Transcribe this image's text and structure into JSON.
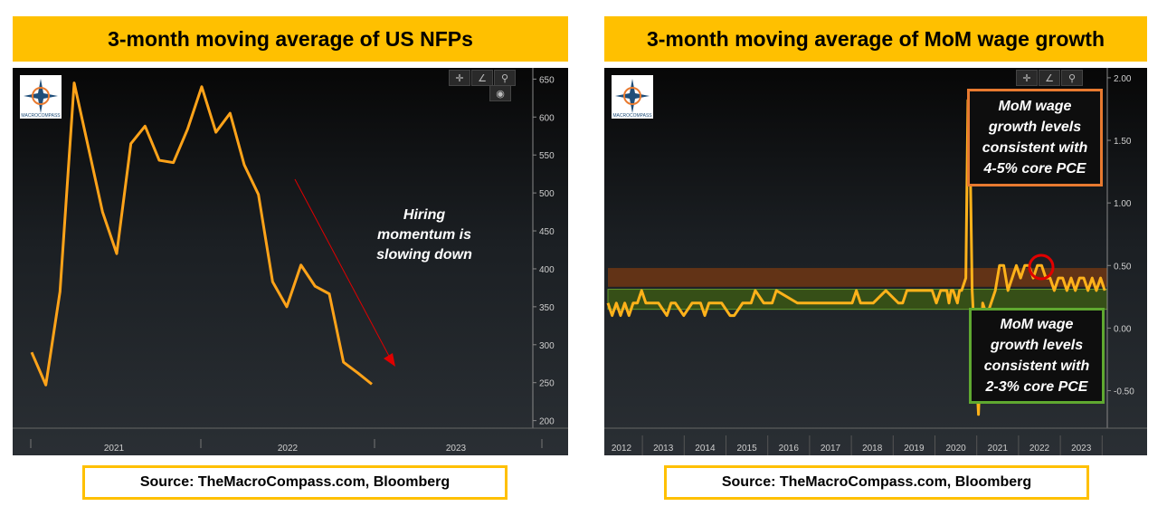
{
  "left": {
    "title": "3-month moving average of US NFPs",
    "source": "Source: TheMacroCompass.com, Bloomberg",
    "annotation": [
      "Hiring",
      "momentum is",
      "slowing down"
    ],
    "logo_text": "MACROCOMPASS",
    "chart_data": {
      "type": "line",
      "title": "3-month moving average of US NFPs",
      "xlabel": "",
      "ylabel": "",
      "ylim": [
        190,
        660
      ],
      "yticks": [
        200,
        250,
        300,
        350,
        400,
        450,
        500,
        550,
        600,
        650
      ],
      "x_labels": [
        "2021",
        "2022",
        "2023"
      ],
      "series": [
        {
          "color": "#FFA319",
          "values": [
            290,
            247,
            370,
            645,
            560,
            475,
            420,
            565,
            588,
            543,
            540,
            584,
            640,
            580,
            605,
            537,
            498,
            383,
            350,
            405,
            377,
            367,
            277,
            263,
            248
          ]
        }
      ],
      "arrow_color": "#E00000"
    }
  },
  "right": {
    "title": "3-month moving average of MoM wage growth",
    "source": "Source: TheMacroCompass.com, Bloomberg",
    "logo_text": "MACROCOMPASS",
    "box_top": [
      "MoM wage",
      "growth levels",
      "consistent with",
      "4-5% core PCE"
    ],
    "box_bottom": [
      "MoM wage",
      "growth levels",
      "consistent with",
      "2-3% core PCE"
    ],
    "colors": {
      "top_band": "#7A3A12",
      "bottom_band": "#3C5A14",
      "top_border": "#E87A30",
      "bottom_border": "#5FA830",
      "circle": "#E00000"
    },
    "chart_data": {
      "type": "line",
      "title": "3-month moving average of MoM wage growth",
      "xlabel": "",
      "ylabel": "",
      "ylim": [
        -0.8,
        2.05
      ],
      "yticks": [
        -0.5,
        0.0,
        0.5,
        1.0,
        1.5,
        2.0
      ],
      "ytick_labels": [
        "-0.50",
        "0.00",
        "0.50",
        "1.00",
        "1.50",
        "2.00"
      ],
      "x_labels": [
        "2012",
        "2013",
        "2014",
        "2015",
        "2016",
        "2017",
        "2018",
        "2019",
        "2020",
        "2021",
        "2022",
        "2023"
      ],
      "x_start": 2012.0,
      "x_end": 2023.0,
      "bands": [
        {
          "from": 0.33,
          "to": 0.48,
          "label": "4-5% core PCE"
        },
        {
          "from": 0.15,
          "to": 0.31,
          "label": "2-3% core PCE"
        }
      ],
      "series": [
        {
          "color": "#FFB21A",
          "x": [
            2012.0,
            2012.1,
            2012.2,
            2012.3,
            2012.4,
            2012.5,
            2012.6,
            2012.7,
            2012.8,
            2012.9,
            2013.0,
            2013.2,
            2013.4,
            2013.5,
            2013.6,
            2013.8,
            2014.0,
            2014.2,
            2014.3,
            2014.4,
            2014.6,
            2014.7,
            2014.9,
            2015.0,
            2015.2,
            2015.4,
            2015.5,
            2015.7,
            2015.9,
            2016.0,
            2016.5,
            2017.0,
            2017.4,
            2017.6,
            2017.7,
            2017.8,
            2017.9,
            2018.0,
            2018.3,
            2018.6,
            2018.9,
            2019.0,
            2019.1,
            2019.2,
            2019.3,
            2019.4,
            2019.5,
            2019.6,
            2019.7,
            2019.8,
            2019.9,
            2020.0,
            2020.05,
            2020.1,
            2020.15,
            2020.2,
            2020.3,
            2020.35,
            2020.4,
            2020.5,
            2020.55,
            2020.6,
            2020.65,
            2020.8,
            2020.9,
            2021.0,
            2021.1,
            2021.2,
            2021.3,
            2021.4,
            2021.5,
            2021.6,
            2021.7,
            2021.8,
            2021.9,
            2022.0,
            2022.1,
            2022.2,
            2022.3,
            2022.4,
            2022.5,
            2022.6,
            2022.7,
            2022.8,
            2022.9,
            2023.0,
            2023.1,
            2023.2,
            2023.3,
            2023.4,
            2023.5,
            2023.6,
            2023.7,
            2023.8
          ],
          "values": [
            0.2,
            0.1,
            0.2,
            0.1,
            0.2,
            0.1,
            0.2,
            0.2,
            0.3,
            0.2,
            0.2,
            0.2,
            0.1,
            0.2,
            0.2,
            0.1,
            0.2,
            0.2,
            0.1,
            0.2,
            0.2,
            0.2,
            0.1,
            0.1,
            0.2,
            0.2,
            0.3,
            0.2,
            0.2,
            0.3,
            0.2,
            0.2,
            0.2,
            0.2,
            0.2,
            0.2,
            0.3,
            0.2,
            0.2,
            0.3,
            0.2,
            0.2,
            0.3,
            0.3,
            0.3,
            0.3,
            0.3,
            0.3,
            0.3,
            0.2,
            0.3,
            0.3,
            0.3,
            0.2,
            0.3,
            0.3,
            0.2,
            0.3,
            0.3,
            0.4,
            1.82,
            1.4,
            0.3,
            -0.69,
            0.2,
            0.1,
            0.2,
            0.3,
            0.5,
            0.5,
            0.3,
            0.4,
            0.5,
            0.4,
            0.5,
            0.5,
            0.4,
            0.5,
            0.5,
            0.4,
            0.4,
            0.3,
            0.4,
            0.4,
            0.3,
            0.4,
            0.3,
            0.4,
            0.4,
            0.3,
            0.4,
            0.3,
            0.4,
            0.3
          ]
        }
      ]
    }
  }
}
